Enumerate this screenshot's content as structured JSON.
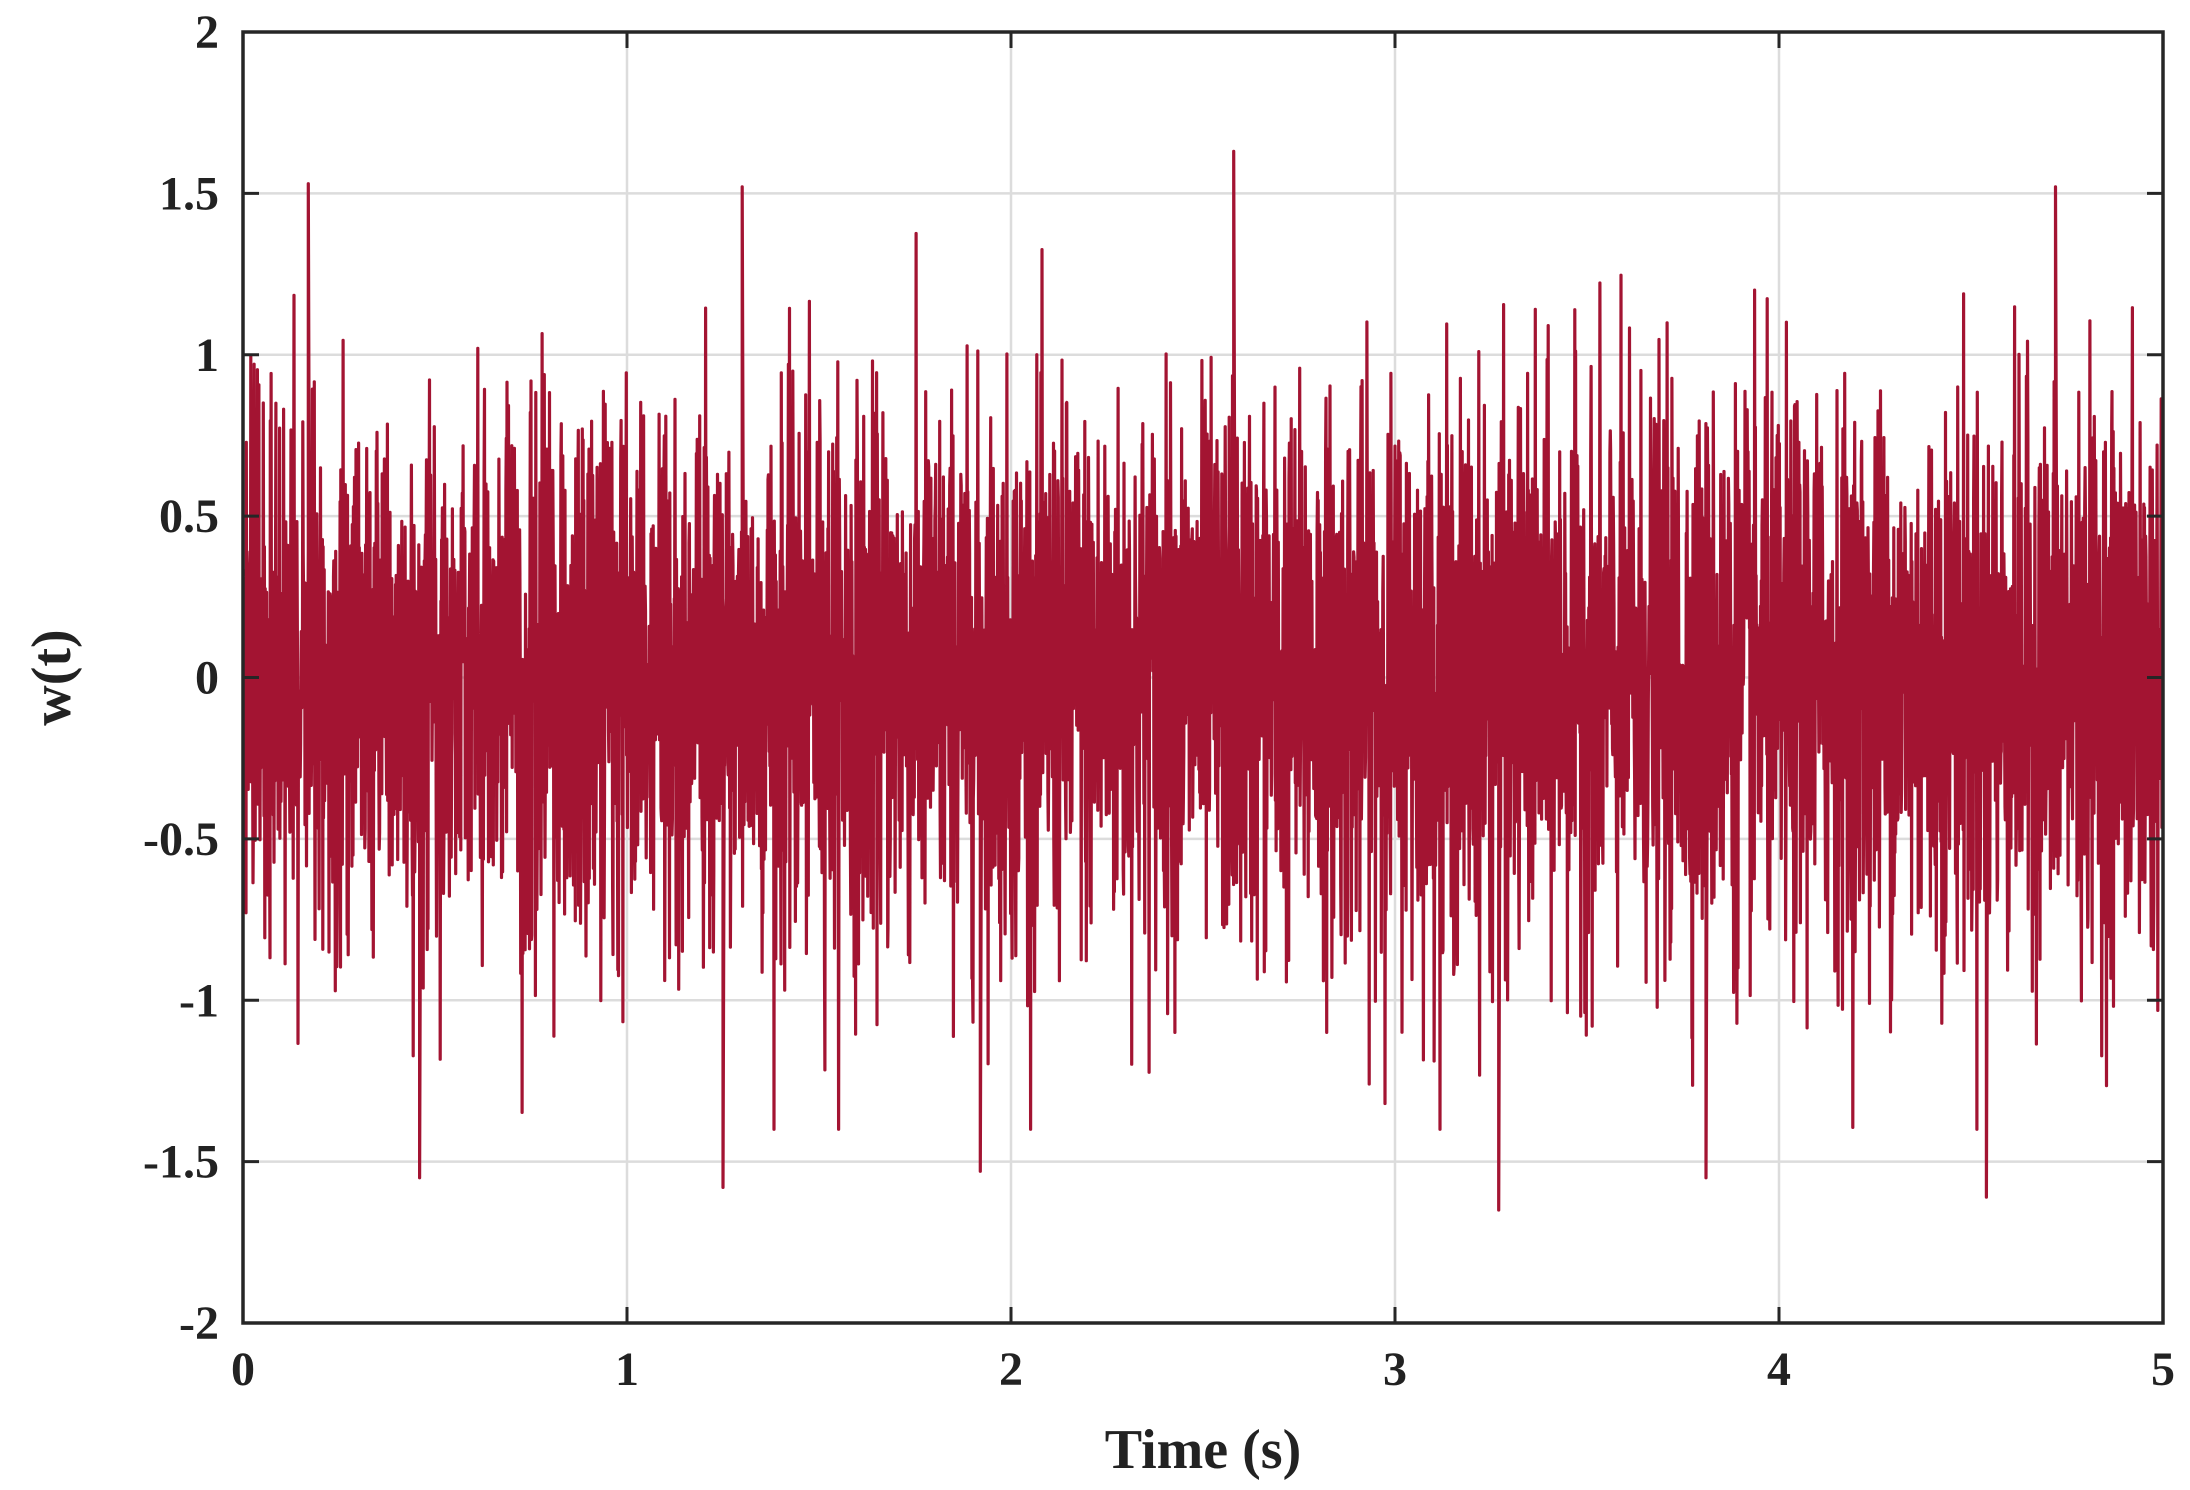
{
  "chart_data": {
    "type": "line",
    "xlabel": "Time (s)",
    "ylabel": "w(t)",
    "xlim": [
      0,
      5
    ],
    "ylim": [
      -2,
      2
    ],
    "xticks": [
      0,
      1,
      2,
      3,
      4,
      5
    ],
    "yticks": [
      -2,
      -1.5,
      -1,
      -0.5,
      0,
      0.5,
      1,
      1.5,
      2
    ],
    "xtick_labels": [
      "0",
      "1",
      "2",
      "3",
      "4",
      "5"
    ],
    "ytick_labels": [
      "-2",
      "-1.5",
      "-1",
      "-0.5",
      "0",
      "0.5",
      "1",
      "1.5",
      "2"
    ],
    "grid": true,
    "line_color": "#a31432",
    "series": [
      {
        "signal": "zero-mean random noise, band approximately -1 to 1",
        "notable_peaks": [
          {
            "x": 0.17,
            "y": 1.53
          },
          {
            "x": 1.3,
            "y": 1.52
          },
          {
            "x": 2.58,
            "y": 1.63
          },
          {
            "x": 4.72,
            "y": 1.52
          }
        ],
        "notable_troughs": [
          {
            "x": 0.46,
            "y": -1.55
          },
          {
            "x": 1.25,
            "y": -1.58
          },
          {
            "x": 1.92,
            "y": -1.53
          },
          {
            "x": 3.27,
            "y": -1.65
          },
          {
            "x": 3.81,
            "y": -1.55
          },
          {
            "x": 4.54,
            "y": -1.61
          }
        ]
      }
    ]
  }
}
